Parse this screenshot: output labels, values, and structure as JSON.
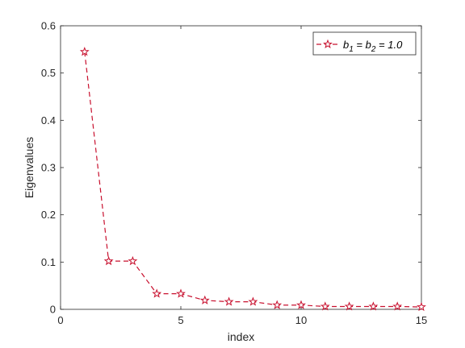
{
  "chart_data": {
    "type": "line",
    "xlabel": "index",
    "ylabel": "Eigenvalues",
    "xlim": [
      0,
      15
    ],
    "ylim": [
      0,
      0.6
    ],
    "xticks": [
      0,
      5,
      10,
      15
    ],
    "yticks": [
      0,
      0.1,
      0.2,
      0.3,
      0.4,
      0.5,
      0.6
    ],
    "ytick_labels": [
      "0",
      "0.1",
      "0.2",
      "0.3",
      "0.4",
      "0.5",
      "0.6"
    ],
    "grid": false,
    "legend_position": "top-right",
    "series": [
      {
        "legend_parts": [
          "b",
          "1",
          " = b",
          "2",
          " = 1.0"
        ],
        "color": "#c8102e",
        "line_style": "dashed",
        "marker": "star",
        "x": [
          1,
          2,
          3,
          4,
          5,
          6,
          7,
          8,
          9,
          10,
          11,
          12,
          13,
          14,
          15
        ],
        "values": [
          0.545,
          0.102,
          0.102,
          0.033,
          0.033,
          0.019,
          0.016,
          0.016,
          0.009,
          0.009,
          0.006,
          0.006,
          0.006,
          0.006,
          0.005
        ]
      }
    ]
  }
}
